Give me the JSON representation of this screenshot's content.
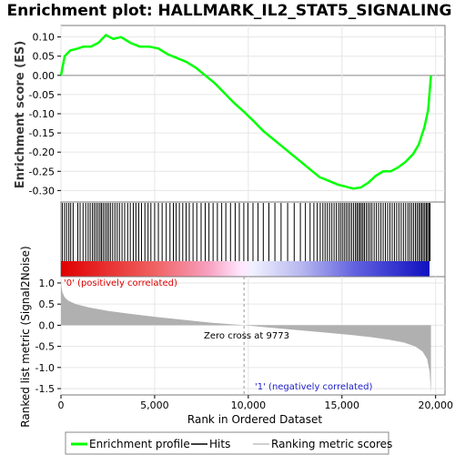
{
  "chart_data": [
    {
      "type": "line",
      "title": "Enrichment plot: HALLMARK_IL2_STAT5_SIGNALING",
      "ylabel": "Enrichment score (ES)",
      "ylim": [
        -0.33,
        0.13
      ],
      "yticks": [
        0.1,
        0.05,
        0.0,
        -0.05,
        -0.1,
        -0.15,
        -0.2,
        -0.25,
        -0.3
      ],
      "ytick_labels": [
        "0.10",
        "0.05",
        "0.00",
        "-0.05",
        "-0.10",
        "-0.15",
        "-0.20",
        "-0.25",
        "-0.30"
      ],
      "x": [
        0,
        200,
        500,
        900,
        1200,
        1600,
        2000,
        2400,
        2800,
        3200,
        3700,
        4200,
        4700,
        5200,
        5700,
        6200,
        6700,
        7200,
        7700,
        8200,
        8700,
        9200,
        9773,
        10300,
        10800,
        11300,
        11800,
        12300,
        12800,
        13300,
        13800,
        14300,
        14800,
        15200,
        15600,
        16000,
        16400,
        16800,
        17200,
        17600,
        18000,
        18400,
        18800,
        19100,
        19400,
        19600,
        19750
      ],
      "series": [
        {
          "color": "#00ff00",
          "values": [
            0.0,
            0.05,
            0.065,
            0.07,
            0.075,
            0.075,
            0.085,
            0.105,
            0.095,
            0.1,
            0.085,
            0.075,
            0.075,
            0.07,
            0.055,
            0.045,
            0.035,
            0.02,
            0.0,
            -0.02,
            -0.045,
            -0.07,
            -0.095,
            -0.12,
            -0.145,
            -0.165,
            -0.185,
            -0.205,
            -0.225,
            -0.245,
            -0.265,
            -0.275,
            -0.285,
            -0.29,
            -0.295,
            -0.292,
            -0.28,
            -0.262,
            -0.25,
            -0.25,
            -0.24,
            -0.225,
            -0.205,
            -0.18,
            -0.135,
            -0.09,
            0.0
          ]
        }
      ]
    },
    {
      "type": "hits",
      "hit_ranks": [
        70,
        190,
        300,
        420,
        520,
        650,
        900,
        1020,
        1180,
        1320,
        1450,
        1560,
        1680,
        1780,
        1880,
        1980,
        2080,
        2160,
        2250,
        2350,
        2450,
        2540,
        2640,
        2760,
        2880,
        3000,
        3120,
        3260,
        3400,
        3560,
        3700,
        3860,
        4000,
        4150,
        4300,
        4480,
        4650,
        4800,
        5000,
        5200,
        5400,
        5620,
        5820,
        6000,
        6150,
        6320,
        6500,
        6680,
        6850,
        7050,
        7250,
        7480,
        7700,
        7900,
        8120,
        8350,
        8580,
        8800,
        9050,
        9300,
        9520,
        9760,
        9980,
        10250,
        10520,
        10800,
        11100,
        11420,
        11750,
        12100,
        12450,
        12780,
        13050,
        13300,
        13500,
        13680,
        13840,
        13980,
        14100,
        14220,
        14340,
        14460,
        14580,
        14700,
        14820,
        14920,
        15020,
        15120,
        15220,
        15320,
        15420,
        15520,
        15620,
        15720,
        15800,
        15880,
        15960,
        16040,
        16120,
        16200,
        16300,
        16400,
        16500,
        16600,
        16720,
        16840,
        16960,
        17080,
        17200,
        17320,
        17440,
        17560,
        17680,
        17800,
        17920,
        18040,
        18160,
        18280,
        18400,
        18520,
        18620,
        18720,
        18820,
        18920,
        19010,
        19100,
        19180,
        19260,
        19340,
        19420,
        19500,
        19570,
        19640,
        19700
      ]
    },
    {
      "type": "area",
      "ylabel": "Ranked list metric (Signal2Noise)",
      "xlabel": "Rank in Ordered Dataset",
      "xlim": [
        0,
        20500
      ],
      "ylim": [
        -1.65,
        1.15
      ],
      "yticks": [
        1.0,
        0.5,
        0.0,
        -0.5,
        -1.0,
        -1.5
      ],
      "ytick_labels": [
        "1.0",
        "0.5",
        "0.0",
        "-0.5",
        "-1.0",
        "-1.5"
      ],
      "xticks": [
        0,
        5000,
        10000,
        15000,
        20000
      ],
      "xtick_labels": [
        "0",
        "5,000",
        "10,000",
        "15,000",
        "20,000"
      ],
      "x": [
        0,
        30,
        80,
        200,
        400,
        800,
        1500,
        2500,
        3500,
        5000,
        6500,
        8000,
        9773,
        11000,
        12500,
        14000,
        15500,
        16500,
        17500,
        18300,
        18900,
        19300,
        19550,
        19680,
        19750
      ],
      "values": [
        1.1,
        0.9,
        0.78,
        0.66,
        0.58,
        0.5,
        0.42,
        0.34,
        0.28,
        0.2,
        0.13,
        0.06,
        0.0,
        -0.05,
        -0.11,
        -0.17,
        -0.23,
        -0.28,
        -0.34,
        -0.41,
        -0.5,
        -0.62,
        -0.8,
        -1.1,
        -1.6
      ],
      "color": "#b0b0b0",
      "annotations": {
        "pos": "'0' (positively correlated)",
        "neg": "'1' (negatively correlated)",
        "zero": "Zero cross at 9773"
      },
      "zero_cross": 9773
    }
  ],
  "legend": {
    "items": [
      {
        "label": "Enrichment profile",
        "color": "#00ff00"
      },
      {
        "label": "Hits",
        "color": "#000000"
      },
      {
        "label": "Ranking metric scores",
        "color": "#c0c0c0"
      }
    ]
  },
  "colors": {
    "pos_text": "#dd0000",
    "neg_text": "#2222cc"
  }
}
